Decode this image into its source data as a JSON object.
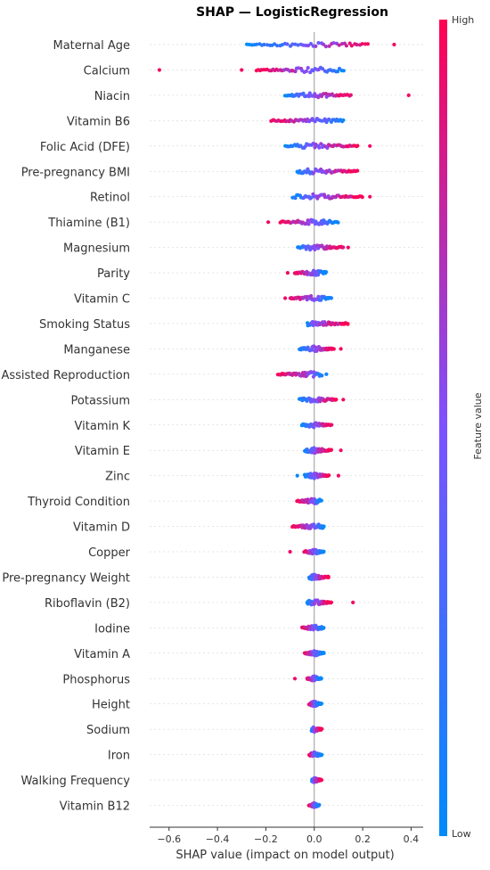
{
  "chart_data": {
    "type": "scatter",
    "title": "SHAP — LogisticRegression",
    "xlabel": "SHAP value (impact on model output)",
    "xlim": [
      -0.68,
      0.45
    ],
    "xticks": [
      -0.6,
      -0.4,
      -0.2,
      0.0,
      0.2,
      0.4
    ],
    "xtick_labels": [
      "−0.6",
      "−0.4",
      "−0.2",
      "0.0",
      "0.2",
      "0.4"
    ],
    "colorbar": {
      "label": "Feature value",
      "high": "High",
      "low": "Low",
      "high_color": "#ff0052",
      "low_color": "#008bfb"
    },
    "features": [
      {
        "name": "Maternal Age",
        "min": -0.28,
        "max": 0.22,
        "neg_high": false,
        "outliers": [
          0.33
        ]
      },
      {
        "name": "Calcium",
        "min": -0.24,
        "max": 0.12,
        "neg_high": true,
        "outliers": [
          -0.64,
          -0.3,
          -0.22
        ]
      },
      {
        "name": "Niacin",
        "min": -0.12,
        "max": 0.15,
        "neg_high": false,
        "outliers": [
          0.39
        ]
      },
      {
        "name": "Vitamin B6",
        "min": -0.18,
        "max": 0.12,
        "neg_high": true,
        "outliers": []
      },
      {
        "name": "Folic Acid (DFE)",
        "min": -0.12,
        "max": 0.18,
        "neg_high": false,
        "outliers": [
          0.23
        ]
      },
      {
        "name": "Pre-pregnancy BMI",
        "min": -0.07,
        "max": 0.18,
        "neg_high": false,
        "outliers": []
      },
      {
        "name": "Retinol",
        "min": -0.09,
        "max": 0.2,
        "neg_high": false,
        "outliers": [
          0.23
        ]
      },
      {
        "name": "Thiamine (B1)",
        "min": -0.14,
        "max": 0.1,
        "neg_high": true,
        "outliers": [
          -0.19
        ]
      },
      {
        "name": "Magnesium",
        "min": -0.07,
        "max": 0.12,
        "neg_high": false,
        "outliers": [
          0.14
        ]
      },
      {
        "name": "Parity",
        "min": -0.08,
        "max": 0.05,
        "neg_high": true,
        "outliers": [
          -0.11
        ]
      },
      {
        "name": "Vitamin C",
        "min": -0.1,
        "max": 0.07,
        "neg_high": true,
        "outliers": [
          -0.12
        ]
      },
      {
        "name": "Smoking Status",
        "min": -0.03,
        "max": 0.14,
        "neg_high": false,
        "outliers": []
      },
      {
        "name": "Manganese",
        "min": -0.06,
        "max": 0.08,
        "neg_high": false,
        "outliers": [
          0.11
        ]
      },
      {
        "name": "Assisted Reproduction",
        "min": -0.15,
        "max": 0.03,
        "neg_high": true,
        "outliers": [
          0.05
        ]
      },
      {
        "name": "Potassium",
        "min": -0.06,
        "max": 0.09,
        "neg_high": false,
        "outliers": [
          0.12
        ]
      },
      {
        "name": "Vitamin K",
        "min": -0.05,
        "max": 0.07,
        "neg_high": false,
        "outliers": []
      },
      {
        "name": "Vitamin E",
        "min": -0.04,
        "max": 0.07,
        "neg_high": false,
        "outliers": [
          0.11
        ]
      },
      {
        "name": "Zinc",
        "min": -0.04,
        "max": 0.06,
        "neg_high": false,
        "outliers": [
          -0.07,
          0.1
        ]
      },
      {
        "name": "Thyroid Condition",
        "min": -0.07,
        "max": 0.03,
        "neg_high": true,
        "outliers": []
      },
      {
        "name": "Vitamin D",
        "min": -0.09,
        "max": 0.04,
        "neg_high": true,
        "outliers": []
      },
      {
        "name": "Copper",
        "min": -0.04,
        "max": 0.04,
        "neg_high": true,
        "outliers": [
          -0.1
        ]
      },
      {
        "name": "Pre-pregnancy Weight",
        "min": -0.02,
        "max": 0.06,
        "neg_high": false,
        "outliers": []
      },
      {
        "name": "Riboflavin (B2)",
        "min": -0.03,
        "max": 0.07,
        "neg_high": false,
        "outliers": [
          0.16
        ]
      },
      {
        "name": "Iodine",
        "min": -0.05,
        "max": 0.04,
        "neg_high": true,
        "outliers": []
      },
      {
        "name": "Vitamin A",
        "min": -0.04,
        "max": 0.04,
        "neg_high": true,
        "outliers": []
      },
      {
        "name": "Phosphorus",
        "min": -0.03,
        "max": 0.03,
        "neg_high": true,
        "outliers": [
          -0.08
        ]
      },
      {
        "name": "Height",
        "min": -0.02,
        "max": 0.03,
        "neg_high": true,
        "outliers": []
      },
      {
        "name": "Sodium",
        "min": -0.01,
        "max": 0.03,
        "neg_high": false,
        "outliers": []
      },
      {
        "name": "Iron",
        "min": -0.02,
        "max": 0.03,
        "neg_high": true,
        "outliers": []
      },
      {
        "name": "Walking Frequency",
        "min": -0.01,
        "max": 0.03,
        "neg_high": false,
        "outliers": []
      },
      {
        "name": "Vitamin B12",
        "min": -0.02,
        "max": 0.02,
        "neg_high": true,
        "outliers": []
      }
    ]
  }
}
